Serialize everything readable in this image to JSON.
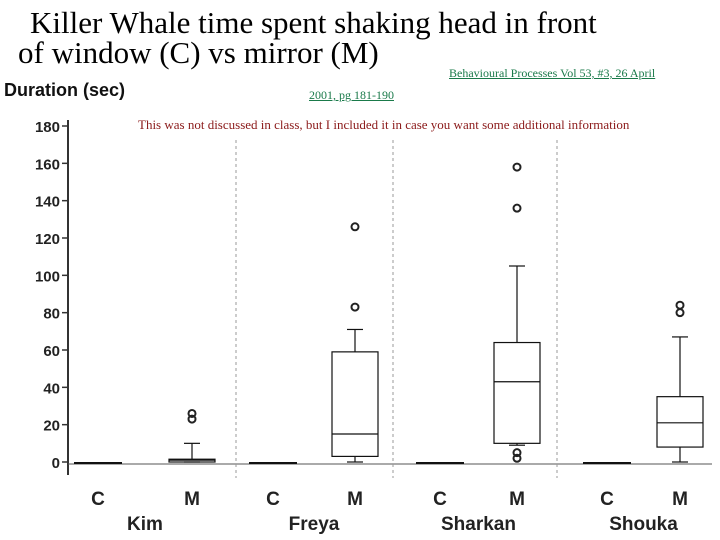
{
  "title": {
    "line1": "Killer Whale time spent shaking head in front",
    "line2": "of window (C) vs mirror (M)"
  },
  "citation": {
    "part1": "Behavioural Processes  Vol 53, #3, 26 April",
    "part2": "2001, pg 181-190"
  },
  "note": "This was not discussed in class, but I included it in case you want some additional information",
  "chart_data": {
    "type": "box",
    "ylabel": "Duration (sec)",
    "ylim": [
      0,
      180
    ],
    "yticks": [
      0,
      20,
      40,
      60,
      80,
      100,
      120,
      140,
      160,
      180
    ],
    "grid": false,
    "groups": [
      {
        "name": "Kim",
        "conditions": [
          {
            "label": "C",
            "min": 0,
            "q1": 0,
            "median": 0,
            "q3": 0,
            "max": 0,
            "outliers": []
          },
          {
            "label": "M",
            "min": 0,
            "q1": 0,
            "median": 1,
            "q3": 1.5,
            "max": 10,
            "outliers": [
              23,
              26
            ]
          }
        ]
      },
      {
        "name": "Freya",
        "conditions": [
          {
            "label": "C",
            "min": 0,
            "q1": 0,
            "median": 0,
            "q3": 0,
            "max": 0,
            "outliers": []
          },
          {
            "label": "M",
            "min": 0,
            "q1": 3,
            "median": 15,
            "q3": 59,
            "max": 71,
            "outliers": [
              83,
              126
            ]
          }
        ]
      },
      {
        "name": "Sharkan",
        "conditions": [
          {
            "label": "C",
            "min": 0,
            "q1": 0,
            "median": 0,
            "q3": 0,
            "max": 0,
            "outliers": []
          },
          {
            "label": "M",
            "min": 9,
            "q1": 10,
            "median": 43,
            "q3": 64,
            "max": 105,
            "outliers": [
              2,
              5,
              136,
              158
            ]
          }
        ]
      },
      {
        "name": "Shouka",
        "conditions": [
          {
            "label": "C",
            "min": 0,
            "q1": 0,
            "median": 0,
            "q3": 0,
            "max": 0,
            "outliers": []
          },
          {
            "label": "M",
            "min": 0,
            "q1": 8,
            "median": 21,
            "q3": 35,
            "max": 67,
            "outliers": [
              80,
              84
            ]
          }
        ]
      }
    ]
  }
}
